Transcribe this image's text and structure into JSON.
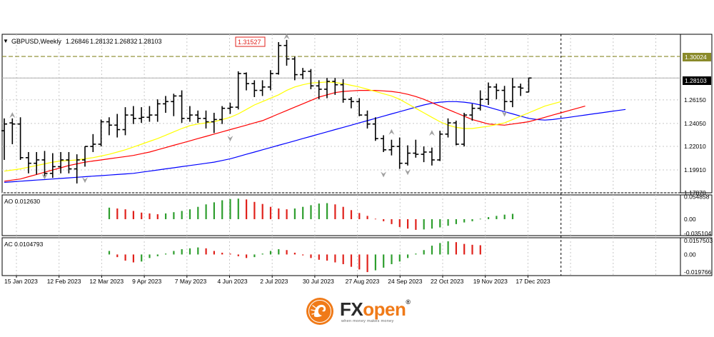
{
  "chart_data": {
    "type": "ohlc",
    "symbol_header": "GBPUSD,Weekly",
    "ohlc_header": [
      "1.26846",
      "1.28132",
      "1.26832",
      "1.28103"
    ],
    "current_price_label": "1.28103",
    "level_line_label": "1.30024",
    "level_line_value": 1.30024,
    "peak_label": "1.31527",
    "grid": true,
    "main_ylim": [
      1.1787,
      1.32
    ],
    "main_ticks": [
      "1.28103",
      "1.26150",
      "1.24050",
      "1.22010",
      "1.19910",
      "1.17870"
    ],
    "x_labels": [
      "15 Jan 2023",
      "12 Feb 2023",
      "12 Mar 2023",
      "9 Apr 2023",
      "7 May 2023",
      "4 Jun 2023",
      "2 Jul 2023",
      "30 Jul 2023",
      "27 Aug 2023",
      "24 Sep 2023",
      "22 Oct 2023",
      "19 Nov 2023",
      "17 Dec 2023"
    ],
    "bars": [
      [
        1.234,
        1.245,
        1.208,
        1.24
      ],
      [
        1.241,
        1.245,
        1.222,
        1.24
      ],
      [
        1.24,
        1.246,
        1.208,
        1.21
      ],
      [
        1.21,
        1.215,
        1.196,
        1.205
      ],
      [
        1.205,
        1.215,
        1.195,
        1.208
      ],
      [
        1.208,
        1.216,
        1.192,
        1.196
      ],
      [
        1.196,
        1.214,
        1.192,
        1.202
      ],
      [
        1.202,
        1.215,
        1.196,
        1.208
      ],
      [
        1.208,
        1.215,
        1.196,
        1.2
      ],
      [
        1.2,
        1.213,
        1.187,
        1.208
      ],
      [
        1.208,
        1.22,
        1.202,
        1.22
      ],
      [
        1.22,
        1.231,
        1.215,
        1.222
      ],
      [
        1.222,
        1.244,
        1.22,
        1.242
      ],
      [
        1.242,
        1.246,
        1.23,
        1.239
      ],
      [
        1.239,
        1.249,
        1.228,
        1.235
      ],
      [
        1.235,
        1.255,
        1.23,
        1.248
      ],
      [
        1.248,
        1.256,
        1.24,
        1.245
      ],
      [
        1.245,
        1.255,
        1.241,
        1.246
      ],
      [
        1.246,
        1.256,
        1.242,
        1.248
      ],
      [
        1.248,
        1.262,
        1.242,
        1.258
      ],
      [
        1.258,
        1.265,
        1.25,
        1.26
      ],
      [
        1.26,
        1.267,
        1.247,
        1.265
      ],
      [
        1.265,
        1.27,
        1.241,
        1.245
      ],
      [
        1.245,
        1.256,
        1.242,
        1.248
      ],
      [
        1.248,
        1.252,
        1.241,
        1.245
      ],
      [
        1.245,
        1.252,
        1.236,
        1.242
      ],
      [
        1.242,
        1.25,
        1.232,
        1.244
      ],
      [
        1.244,
        1.256,
        1.24,
        1.254
      ],
      [
        1.254,
        1.259,
        1.249,
        1.255
      ],
      [
        1.255,
        1.287,
        1.253,
        1.285
      ],
      [
        1.285,
        1.286,
        1.27,
        1.276
      ],
      [
        1.276,
        1.279,
        1.264,
        1.27
      ],
      [
        1.27,
        1.279,
        1.265,
        1.273
      ],
      [
        1.273,
        1.288,
        1.27,
        1.285
      ],
      [
        1.285,
        1.313,
        1.284,
        1.31
      ],
      [
        1.31,
        1.315,
        1.292,
        1.298
      ],
      [
        1.298,
        1.3,
        1.279,
        1.284
      ],
      [
        1.284,
        1.29,
        1.28,
        1.287
      ],
      [
        1.287,
        1.289,
        1.271,
        1.274
      ],
      [
        1.274,
        1.279,
        1.262,
        1.271
      ],
      [
        1.271,
        1.281,
        1.263,
        1.278
      ],
      [
        1.278,
        1.281,
        1.266,
        1.275
      ],
      [
        1.275,
        1.28,
        1.259,
        1.262
      ],
      [
        1.262,
        1.264,
        1.254,
        1.26
      ],
      [
        1.26,
        1.263,
        1.247,
        1.248
      ],
      [
        1.248,
        1.252,
        1.236,
        1.24
      ],
      [
        1.24,
        1.246,
        1.225,
        1.227
      ],
      [
        1.227,
        1.23,
        1.215,
        1.217
      ],
      [
        1.217,
        1.226,
        1.212,
        1.22
      ],
      [
        1.22,
        1.228,
        1.2,
        1.205
      ],
      [
        1.205,
        1.221,
        1.203,
        1.214
      ],
      [
        1.214,
        1.226,
        1.21,
        1.213
      ],
      [
        1.213,
        1.22,
        1.206,
        1.215
      ],
      [
        1.215,
        1.219,
        1.203,
        1.208
      ],
      [
        1.208,
        1.234,
        1.207,
        1.231
      ],
      [
        1.231,
        1.245,
        1.228,
        1.241
      ],
      [
        1.241,
        1.243,
        1.221,
        1.222
      ],
      [
        1.222,
        1.25,
        1.22,
        1.248
      ],
      [
        1.248,
        1.258,
        1.243,
        1.254
      ],
      [
        1.254,
        1.27,
        1.252,
        1.262
      ],
      [
        1.262,
        1.277,
        1.257,
        1.273
      ],
      [
        1.273,
        1.276,
        1.262,
        1.27
      ],
      [
        1.27,
        1.274,
        1.252,
        1.26
      ],
      [
        1.26,
        1.281,
        1.255,
        1.273
      ],
      [
        1.273,
        1.276,
        1.265,
        1.272
      ],
      [
        1.2685,
        1.2813,
        1.2683,
        1.281
      ]
    ],
    "fractals_up": [
      [
        1,
        1.248
      ],
      [
        35,
        1.318
      ],
      [
        48,
        1.233
      ],
      [
        53,
        1.232
      ]
    ],
    "fractals_down": [
      [
        5,
        1.193
      ],
      [
        10,
        1.19
      ],
      [
        28,
        1.227
      ],
      [
        47,
        1.195
      ],
      [
        50,
        1.197
      ],
      [
        62,
        1.249
      ]
    ],
    "ma_fast": {
      "color": "#ffff00",
      "values": [
        1.198,
        1.199,
        1.2,
        1.2015,
        1.203,
        1.2045,
        1.206,
        1.207,
        1.2075,
        1.208,
        1.209,
        1.21,
        1.2115,
        1.213,
        1.215,
        1.217,
        1.2195,
        1.222,
        1.2245,
        1.227,
        1.23,
        1.233,
        1.236,
        1.2385,
        1.24,
        1.241,
        1.242,
        1.244,
        1.246,
        1.249,
        1.253,
        1.257,
        1.26,
        1.263,
        1.266,
        1.27,
        1.273,
        1.275,
        1.2765,
        1.277,
        1.2775,
        1.277,
        1.276,
        1.2745,
        1.273,
        1.271,
        1.269,
        1.267,
        1.265,
        1.262,
        1.258,
        1.254,
        1.25,
        1.246,
        1.242,
        1.239,
        1.237,
        1.236,
        1.236,
        1.237,
        1.238,
        1.2395,
        1.241,
        1.244,
        1.247,
        1.25,
        1.253,
        1.256,
        1.258,
        1.26
      ]
    },
    "ma_mid": {
      "color": "#ff0000",
      "values": [
        1.189,
        1.19,
        1.191,
        1.193,
        1.195,
        1.197,
        1.199,
        1.201,
        1.203,
        1.2045,
        1.206,
        1.207,
        1.208,
        1.209,
        1.21,
        1.211,
        1.212,
        1.2135,
        1.215,
        1.217,
        1.219,
        1.221,
        1.223,
        1.225,
        1.227,
        1.229,
        1.231,
        1.233,
        1.235,
        1.237,
        1.239,
        1.241,
        1.243,
        1.246,
        1.249,
        1.252,
        1.255,
        1.258,
        1.261,
        1.264,
        1.266,
        1.268,
        1.269,
        1.2695,
        1.27,
        1.27,
        1.27,
        1.2695,
        1.269,
        1.268,
        1.2665,
        1.2645,
        1.262,
        1.259,
        1.256,
        1.253,
        1.25,
        1.247,
        1.244,
        1.242,
        1.24,
        1.2395,
        1.239,
        1.24,
        1.241,
        1.242,
        1.244,
        1.246,
        1.248,
        1.25,
        1.252,
        1.254,
        1.256
      ]
    },
    "ma_slow": {
      "color": "#0000ff",
      "values": [
        1.188,
        1.1885,
        1.189,
        1.1895,
        1.19,
        1.1905,
        1.191,
        1.1915,
        1.192,
        1.1925,
        1.193,
        1.1935,
        1.194,
        1.1945,
        1.195,
        1.1955,
        1.196,
        1.197,
        1.198,
        1.199,
        1.2,
        1.201,
        1.202,
        1.203,
        1.204,
        1.205,
        1.206,
        1.2075,
        1.209,
        1.211,
        1.213,
        1.215,
        1.217,
        1.219,
        1.221,
        1.223,
        1.225,
        1.227,
        1.229,
        1.231,
        1.233,
        1.235,
        1.237,
        1.239,
        1.241,
        1.243,
        1.245,
        1.247,
        1.249,
        1.251,
        1.253,
        1.255,
        1.257,
        1.2585,
        1.2595,
        1.26,
        1.26,
        1.2595,
        1.2585,
        1.257,
        1.255,
        1.253,
        1.251,
        1.249,
        1.247,
        1.245,
        1.244,
        1.2435,
        1.244,
        1.245,
        1.246,
        1.247,
        1.248,
        1.249,
        1.25,
        1.251,
        1.252,
        1.253
      ]
    },
    "ao": {
      "label": "AO 0.012630",
      "ylim": [
        -0.04,
        0.059
      ],
      "ticks": [
        "0.054858",
        "0.00",
        "-0.035104"
      ],
      "values": [
        0.028,
        0.026,
        0.024,
        0.02,
        0.016,
        0.014,
        0.012,
        0.014,
        0.017,
        0.02,
        0.024,
        0.03,
        0.036,
        0.041,
        0.046,
        0.049,
        0.05,
        0.048,
        0.042,
        0.037,
        0.03,
        0.026,
        0.024,
        0.026,
        0.03,
        0.034,
        0.038,
        0.039,
        0.036,
        0.03,
        0.022,
        0.015,
        0.008,
        0.001,
        -0.005,
        -0.012,
        -0.019,
        -0.023,
        -0.026,
        -0.025,
        -0.023,
        -0.02,
        -0.016,
        -0.012,
        -0.008,
        -0.005,
        0.001,
        0.005,
        0.008,
        0.011,
        0.013
      ]
    },
    "ac": {
      "label": "AC 0.0104793",
      "ylim": [
        -0.024,
        0.019
      ],
      "ticks": [
        "0.0157503",
        "0.00",
        "-0.019766"
      ],
      "values": [
        0.004,
        -0.003,
        -0.007,
        -0.009,
        -0.008,
        -0.004,
        -0.002,
        0.001,
        0.004,
        0.006,
        0.007,
        0.008,
        0.007,
        0.004,
        0.002,
        0.001,
        -0.002,
        -0.004,
        -0.003,
        0.001,
        0.004,
        0.006,
        0.005,
        0.002,
        -0.001,
        -0.004,
        -0.006,
        -0.007,
        -0.009,
        -0.011,
        -0.014,
        -0.017,
        -0.02,
        -0.018,
        -0.015,
        -0.011,
        -0.008,
        -0.004,
        0.001,
        0.005,
        0.01,
        0.013,
        0.015,
        0.014,
        0.012,
        0.011,
        0.0105
      ]
    },
    "colors": {
      "up_bar": "#2e9e2e",
      "down_bar": "#e0211b",
      "level_line": "#8a8a2a",
      "peak_box": "#e0211b",
      "price_box": "#000000"
    }
  },
  "brand": {
    "name_fx": "FX",
    "name_open": "open",
    "registered": "®",
    "tagline": "when money makes money",
    "accent": "#f07a18"
  }
}
